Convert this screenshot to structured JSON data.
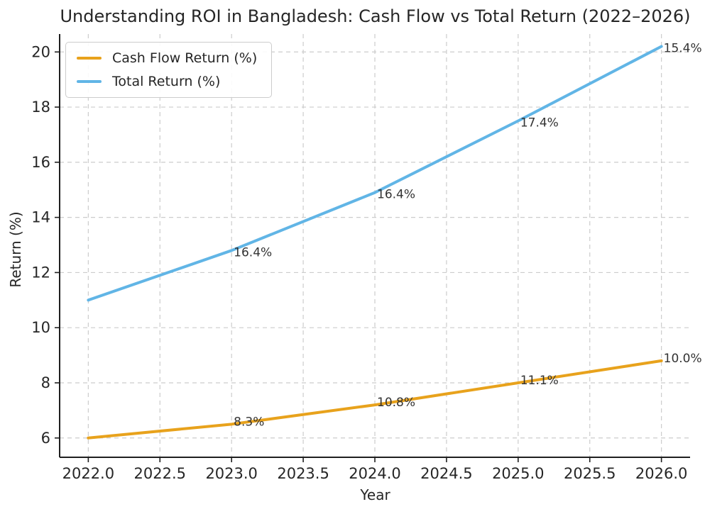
{
  "chart_data": {
    "type": "line",
    "title": "Understanding ROI in Bangladesh: Cash Flow vs Total Return (2022–2026)",
    "xlabel": "Year",
    "ylabel": "Return (%)",
    "x": [
      2022,
      2023,
      2024,
      2025,
      2026
    ],
    "series": [
      {
        "name": "Cash Flow Return (%)",
        "color": "#E8A21C",
        "values": [
          6.0,
          6.5,
          7.2,
          8.0,
          8.8
        ],
        "point_labels": [
          "",
          "8.3%",
          "10.8%",
          "11.1%",
          "10.0%"
        ]
      },
      {
        "name": "Total Return (%)",
        "color": "#61B5E6",
        "values": [
          11.0,
          12.8,
          14.9,
          17.5,
          20.2
        ],
        "point_labels": [
          "",
          "16.4%",
          "16.4%",
          "17.4%",
          "15.4%"
        ]
      }
    ],
    "xticks": [
      2022,
      2022.5,
      2023,
      2023.5,
      2024,
      2024.5,
      2025,
      2025.5,
      2026
    ],
    "xtick_labels": [
      "2022.0",
      "2022.5",
      "2023.0",
      "2023.5",
      "2024.0",
      "2024.5",
      "2025.0",
      "2025.5",
      "2026.0"
    ],
    "yticks": [
      6,
      8,
      10,
      12,
      14,
      16,
      18,
      20
    ],
    "ytick_labels": [
      "6",
      "8",
      "10",
      "12",
      "14",
      "16",
      "18",
      "20"
    ],
    "xlim": [
      2021.8,
      2026.2
    ],
    "ylim": [
      5.3,
      20.65
    ],
    "grid": true,
    "grid_style": "dashed",
    "legend_position": "upper-left",
    "colors": {
      "background": "#ffffff",
      "grid": "#cccccc",
      "text": "#262626",
      "annotation": "#333333",
      "spine": "#1f1f1f"
    }
  }
}
